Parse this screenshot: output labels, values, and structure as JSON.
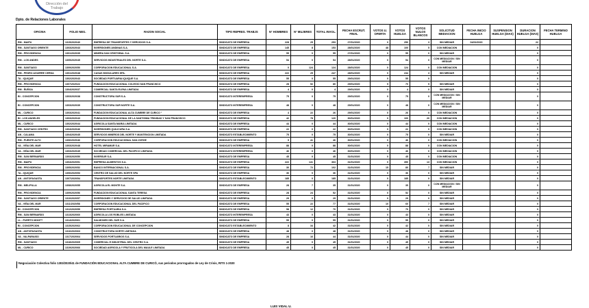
{
  "header": {
    "logo_text": "Dirección del Trabajo",
    "department": "Dpto. de Relaciones Laborales"
  },
  "columns": [
    "OFICINA",
    "FOLIO NEG.",
    "RAZON SOCIAL",
    "TIPO REPRES. TRABJS",
    "N° HOMBRES",
    "N° MUJERES",
    "TOTAL INVOL.",
    "FECHA ESCRUT. FINAL",
    "VOTOS U. OFERTA",
    "VOTOS HUELGA",
    "VOTOS NULOS BLANCOS",
    "SOLICITUD MEDIACION",
    "FECHA INICIO HUELGA",
    "SUSPENSION HUELGA (DIAS)",
    "DURACION HUELGA (DIAS)",
    "FECHA TERMINO HUELGA"
  ],
  "rows": [
    [
      "RM - MAIPU",
      "1315/2020/40",
      "EMPRESA DE TRANSPORTES Y SERVICIOS S.A.",
      "SINDICATO DE EMPRESA",
      "228",
      "25",
      "253",
      "27/01/2020",
      "0",
      "250",
      "3",
      "SIN MEDIAR",
      "04/02/2020",
      "",
      "22",
      ""
    ],
    [
      "RM - SANTIAGO ORIENTE",
      "1303/2020/43",
      "INVERSIONES ANDINAS S.A.",
      "SINDICATO DE EMPRESA",
      "145",
      "8",
      "153",
      "28/01/2020",
      "48",
      "100",
      "5",
      "CON MEDIACION",
      "",
      "",
      "0",
      ""
    ],
    [
      "RM - PROVIDENCIA",
      "1301/2020/39",
      "MINERA SAN CRISTOBAL S.A.",
      "SINDICATO DE EMPRESA",
      "55",
      "0",
      "55",
      "27/01/2020",
      "0",
      "55",
      "0",
      "SIN MEDIAR",
      "",
      "",
      "0",
      ""
    ],
    [
      "RM - LOS ANDES",
      "1305/2020/45",
      "SERVICIOS INDUSTRIALES DEL NORTE S.A.",
      "SINDICATO DE EMPRESA",
      "54",
      "0",
      "54",
      "28/01/2020",
      "0",
      "54",
      "0",
      "CON MEDIACION / SIN MEDIAR",
      "",
      "",
      "0",
      ""
    ],
    [
      "RM - SANTIAGO",
      "1309/2020/50",
      "CORPORACION EDUCACIONAL S.A.",
      "SINDICATO DE EMPRESA",
      "0",
      "124",
      "124",
      "28/01/2020",
      "0",
      "124",
      "0",
      "CON MEDIACION",
      "",
      "",
      "0",
      ""
    ],
    [
      "RM - PEDRO AGUIRRE CERDA",
      "1301/2020/48",
      "CASAS MODULARES SPA.",
      "SINDICATO DE EMPRESA",
      "222",
      "25",
      "247",
      "28/01/2020",
      "0",
      "244",
      "3",
      "SIN MEDIAR",
      "",
      "",
      "0",
      ""
    ],
    [
      "TA - IQUIQUE",
      "1302/2020/43",
      "SOCIEDAD PORTUARIA IQUIQUE S.A.",
      "SINDICATO DE EMPRESA",
      "55",
      "0",
      "55",
      "29/01/2020",
      "0",
      "55",
      "0",
      "",
      "",
      "",
      "0",
      ""
    ],
    [
      "RM - PROVIDENCIA",
      "1307/2020/22",
      "FUNDACION EDUCACIONAL COLEGIO SAN FRANCISCO",
      "SINDICATO DE EMPRESA",
      "28",
      "52",
      "80",
      "29/01/2020",
      "5",
      "70",
      "5",
      "SIN MEDIAR",
      "",
      "",
      "0",
      ""
    ],
    [
      "RM - ÑUÑOA",
      "1304/2020/37",
      "COMERCIAL SANTA ELENA LIMITADA",
      "SINDICATO DE EMPRESA",
      "4",
      "0",
      "4",
      "29/01/2020",
      "0",
      "4",
      "0",
      "SIN MEDIAR",
      "",
      "",
      "0",
      ""
    ],
    [
      "BI - CONCEPCION",
      "1303/2020/38",
      "CONSTRUCTORA SUR S.A.",
      "SINDICATO INTEREMPRESA",
      "75",
      "0",
      "75",
      "29/01/2020",
      "0",
      "75",
      "0",
      "CON MEDIACION / SIN MEDIAR",
      "",
      "",
      "0",
      ""
    ],
    [
      "BI - CONCEPCION",
      "1303/2020/39",
      "CONSTRUCTORA SUR NORTE S.A.",
      "SINDICATO INTEREMPRESA",
      "48",
      "0",
      "48",
      "29/01/2020",
      "0",
      "48",
      "0",
      "CON MEDIACION / SIN MEDIAR",
      "",
      "",
      "0",
      ""
    ],
    [
      "ML - CURICO",
      "1303/2020/41",
      "FUNDACION EDUCACIONAL ALTA CUMBRE DE CURICO ¹",
      "SINDICATO DE EMPRESA",
      "4",
      "22",
      "26",
      "29/01/2020",
      "0",
      "26",
      "0",
      "CON MEDIACION",
      "",
      "",
      "0",
      ""
    ],
    [
      "BI - LOS ANGELES",
      "1303/2020/43",
      "FUNDACION EDUCACIONAL DE LA SANTISIMA TRINIDAD Y SAN FRANCISCO",
      "SINDICATO DE EMPRESA",
      "42",
      "78",
      "120",
      "30/01/2020",
      "0",
      "100",
      "20",
      "CON MEDIACION",
      "",
      "",
      "0",
      ""
    ],
    [
      "ML - CURICO",
      "1302/2020/44",
      "AGRICOLA SANTA MARIA LIMITADA",
      "SINDICATO DE EMPRESA",
      "44",
      "0",
      "44",
      "30/01/2020",
      "0",
      "44",
      "0",
      "CON MEDIACION",
      "",
      "",
      "0",
      ""
    ],
    [
      "RM - SANTIAGO CENTRO",
      "1304/2020/46",
      "INVERSIONES QUILICURA S.A.",
      "SINDICATO DE EMPRESA",
      "22",
      "0",
      "22",
      "30/01/2020",
      "0",
      "22",
      "0",
      "CON MEDIACION",
      "",
      "",
      "0",
      ""
    ],
    [
      "AN - CALAMA",
      "1304/2020/45",
      "SERVICIOS MINEROS DEL NORTE Y MANTENCION LIMITADA",
      "SINDICATO ESTABLECIMIENTO",
      "75",
      "0",
      "75",
      "30/01/2020",
      "0",
      "75",
      "0",
      "SIN MEDIAR",
      "",
      "",
      "0",
      ""
    ],
    [
      "RM - PUENTE ALTO",
      "1306/2020/46",
      "CORPORACION EDUCACIONAL SAN JORGE",
      "SINDICATO DE EMPRESA",
      "5",
      "41",
      "46",
      "30/01/2020",
      "0",
      "46",
      "0",
      "CON MEDIACION",
      "",
      "",
      "0",
      ""
    ],
    [
      "VA - VIÑA DEL MAR",
      "1303/2020/48",
      "HOTEL MIRAMAR S.A.",
      "SINDICATO INTEREMPRESA",
      "88",
      "0",
      "88",
      "30/01/2020",
      "0",
      "88",
      "0",
      "CON MEDIACION",
      "",
      "",
      "0",
      ""
    ],
    [
      "VA - VIÑA DEL MAR",
      "1303/2020/49",
      "SOCIEDAD COMERCIAL DEL PACIFICO LIMITADA",
      "SINDICATO INTEREMPRESA",
      "46",
      "0",
      "46",
      "30/01/2020",
      "0",
      "46",
      "0",
      "CON MEDIACION",
      "",
      "",
      "0",
      ""
    ],
    [
      "RM - SAN BERNARDO",
      "1303/2020/50",
      "INVERSUR S.A.",
      "SINDICATO DE EMPRESA",
      "45",
      "0",
      "45",
      "31/01/2020",
      "0",
      "45",
      "0",
      "CON MEDIACION",
      "",
      "",
      "0",
      ""
    ],
    [
      "RM - MAIPU",
      "1304/2020/51",
      "EMPRESA ALIMENTOS S.A.",
      "SINDICATO DE EMPRESA",
      "222",
      "141",
      "363",
      "31/01/2020",
      "0",
      "350",
      "13",
      "CON MEDIACION",
      "",
      "",
      "0",
      ""
    ],
    [
      "RM - PROVIDENCIA",
      "1305/2020/52",
      "BANCO INTERNACIONAL S.A.",
      "SINDICATO DE EMPRESA",
      "30",
      "72",
      "102",
      "31/01/2020",
      "15",
      "80",
      "7",
      "SIN MEDIAR",
      "",
      "",
      "0",
      ""
    ],
    [
      "TA - IQUIQUE",
      "1306/2020/53",
      "CENTRO DE SALUD DEL NORTE SPA",
      "SINDICATO DE EMPRESA",
      "36",
      "0",
      "36",
      "31/01/2020",
      "0",
      "36",
      "0",
      "SIN MEDIAR",
      "",
      "",
      "0",
      ""
    ],
    [
      "AN - ANTOFAGASTA",
      "1307/2020/54",
      "TRANSPORTES NORTE LIMITADA",
      "SINDICATO ESTABLECIMIENTO",
      "185",
      "0",
      "185",
      "31/01/2020",
      "0",
      "185",
      "0",
      "SIN MEDIAR",
      "",
      "",
      "0",
      ""
    ],
    [
      "RM - MELIPILLA",
      "1308/2020/55",
      "AGRICOLA EL MONTE S.A.",
      "SINDICATO DE EMPRESA",
      "28",
      "7",
      "35",
      "31/01/2020",
      "0",
      "35",
      "0",
      "CON MEDIACION / SIN MEDIAR",
      "",
      "",
      "0",
      ""
    ],
    [
      "RM - PROVIDENCIA",
      "1309/2020/56",
      "FUNDACION EDUCACIONAL SANTA TERESA",
      "SINDICATO DE EMPRESA",
      "28",
      "24",
      "52",
      "31/01/2020",
      "0",
      "52",
      "0",
      "SIN MEDIAR",
      "",
      "",
      "0",
      ""
    ],
    [
      "RM - SANTIAGO ORIENTE",
      "1310/2020/57",
      "INVERSIONES Y SERVICIOS DE SALUD LIMITADA",
      "SINDICATO DE EMPRESA",
      "29",
      "0",
      "29",
      "31/01/2020",
      "0",
      "29",
      "0",
      "SIN MEDIAR",
      "",
      "",
      "0",
      ""
    ],
    [
      "VA - VIÑA DEL MAR",
      "1311/2020/58",
      "CORPORACION EDUCACIONAL DEL PACIFICO",
      "SINDICATO DE EMPRESA",
      "55",
      "22",
      "77",
      "31/01/2020",
      "10",
      "60",
      "7",
      "SIN MEDIAR",
      "",
      "",
      "0",
      ""
    ],
    [
      "BI - CONCEPCION",
      "1312/2020/59",
      "EMPRESA PORTUARIA S.A.",
      "SINDICATO DE EMPRESA",
      "58",
      "12",
      "70",
      "31/01/2020",
      "0",
      "70",
      "0",
      "SIN MEDIAR",
      "",
      "",
      "0",
      ""
    ],
    [
      "RM - SAN BERNARDO",
      "1313/2020/60",
      "AGRICOLA LOS ROBLES LIMITADA",
      "SINDICATO INTEREMPRESA",
      "43",
      "0",
      "43",
      "31/01/2020",
      "0",
      "43",
      "0",
      "SIN MEDIAR",
      "",
      "",
      "0",
      ""
    ],
    [
      "LL - PUERTO MONTT",
      "1314/2020/61",
      "SALMONES DEL SUR S.A.",
      "SINDICATO DE EMPRESA",
      "55",
      "0",
      "55",
      "31/01/2020",
      "0",
      "55",
      "0",
      "SIN MEDIAR",
      "",
      "",
      "0",
      ""
    ],
    [
      "BI - CONCEPCION",
      "1315/2020/62",
      "CORPORACION EDUCACIONAL DE CONCEPCION",
      "SINDICATO ESTABLECIMIENTO",
      "8",
      "34",
      "42",
      "31/01/2020",
      "0",
      "42",
      "0",
      "SIN MEDIAR",
      "",
      "",
      "0",
      ""
    ],
    [
      "AN - ANTOFAGASTA",
      "1316/2020/63",
      "CONSTRUCTORA NORTE LIMITADA",
      "SINDICATO DE EMPRESA",
      "48",
      "0",
      "48",
      "31/01/2020",
      "0",
      "48",
      "0",
      "SIN MEDIAR",
      "",
      "",
      "0",
      ""
    ],
    [
      "VA - VALPARAISO",
      "1317/2020/64",
      "SERVICIOS PORTUARIOS S.A.",
      "SINDICATO DE EMPRESA",
      "28",
      "16",
      "44",
      "31/01/2020",
      "0",
      "44",
      "0",
      "SIN MEDIAR",
      "",
      "",
      "0",
      ""
    ],
    [
      "RM - SANTIAGO",
      "1318/2020/65",
      "COMERCIAL E INDUSTRIAL DEL CENTRO S.A.",
      "SINDICATO DE EMPRESA",
      "45",
      "0",
      "45",
      "31/01/2020",
      "0",
      "45",
      "0",
      "SIN MEDIAR",
      "",
      "",
      "0",
      ""
    ],
    [
      "ML - CURICO",
      "1319/2020/66",
      "SOCIEDAD AGRICOLA Y FRUTICOLA DEL MAULE LIMITADA",
      "SINDICATO DE EMPRESA",
      "45",
      "0",
      "45",
      "31/01/2020",
      "0",
      "45",
      "0",
      "SIN MEDIAR",
      "",
      "",
      "0",
      ""
    ]
  ],
  "footnote": "¹Negociación Colectiva folio 1303/2020/41 de FUNDACIÓN EDUCACIONAL ALTA CUMBRE DE CURICÓ, sus periodos prorrogados de Ley de Crisis, RITS 1-2020",
  "signature": "LUIS VIDAL U."
}
